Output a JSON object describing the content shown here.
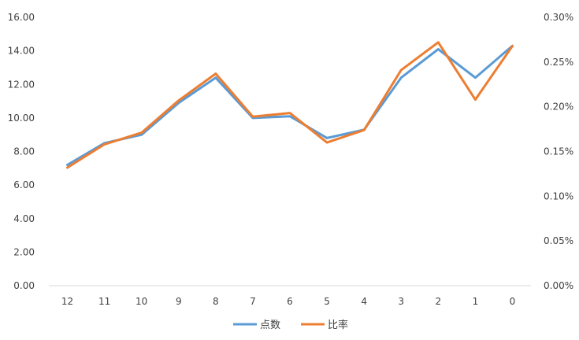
{
  "chart_data": {
    "type": "line",
    "categories": [
      "12",
      "11",
      "10",
      "9",
      "8",
      "7",
      "6",
      "5",
      "4",
      "3",
      "2",
      "1",
      "0"
    ],
    "series": [
      {
        "name": "点数",
        "axis": "left",
        "color": "#5b9bd5",
        "values": [
          7.2,
          8.5,
          9.0,
          10.9,
          12.4,
          10.0,
          10.1,
          8.8,
          9.3,
          12.4,
          14.1,
          12.4,
          14.3
        ]
      },
      {
        "name": "比率",
        "axis": "right",
        "color": "#ed7d31",
        "values": [
          0.00132,
          0.00158,
          0.00171,
          0.00207,
          0.00237,
          0.00189,
          0.00193,
          0.0016,
          0.00174,
          0.00241,
          0.00272,
          0.00208,
          0.00268
        ]
      }
    ],
    "y_left": {
      "ylim": [
        0,
        16
      ],
      "ticks": [
        "0.00",
        "2.00",
        "4.00",
        "6.00",
        "8.00",
        "10.00",
        "12.00",
        "14.00",
        "16.00"
      ]
    },
    "y_right": {
      "ylim": [
        0,
        0.003
      ],
      "ticks": [
        "0.00%",
        "0.05%",
        "0.10%",
        "0.15%",
        "0.20%",
        "0.25%",
        "0.30%"
      ]
    },
    "legend": {
      "position": "bottom",
      "entries": [
        "点数",
        "比率"
      ]
    },
    "grid": false
  }
}
